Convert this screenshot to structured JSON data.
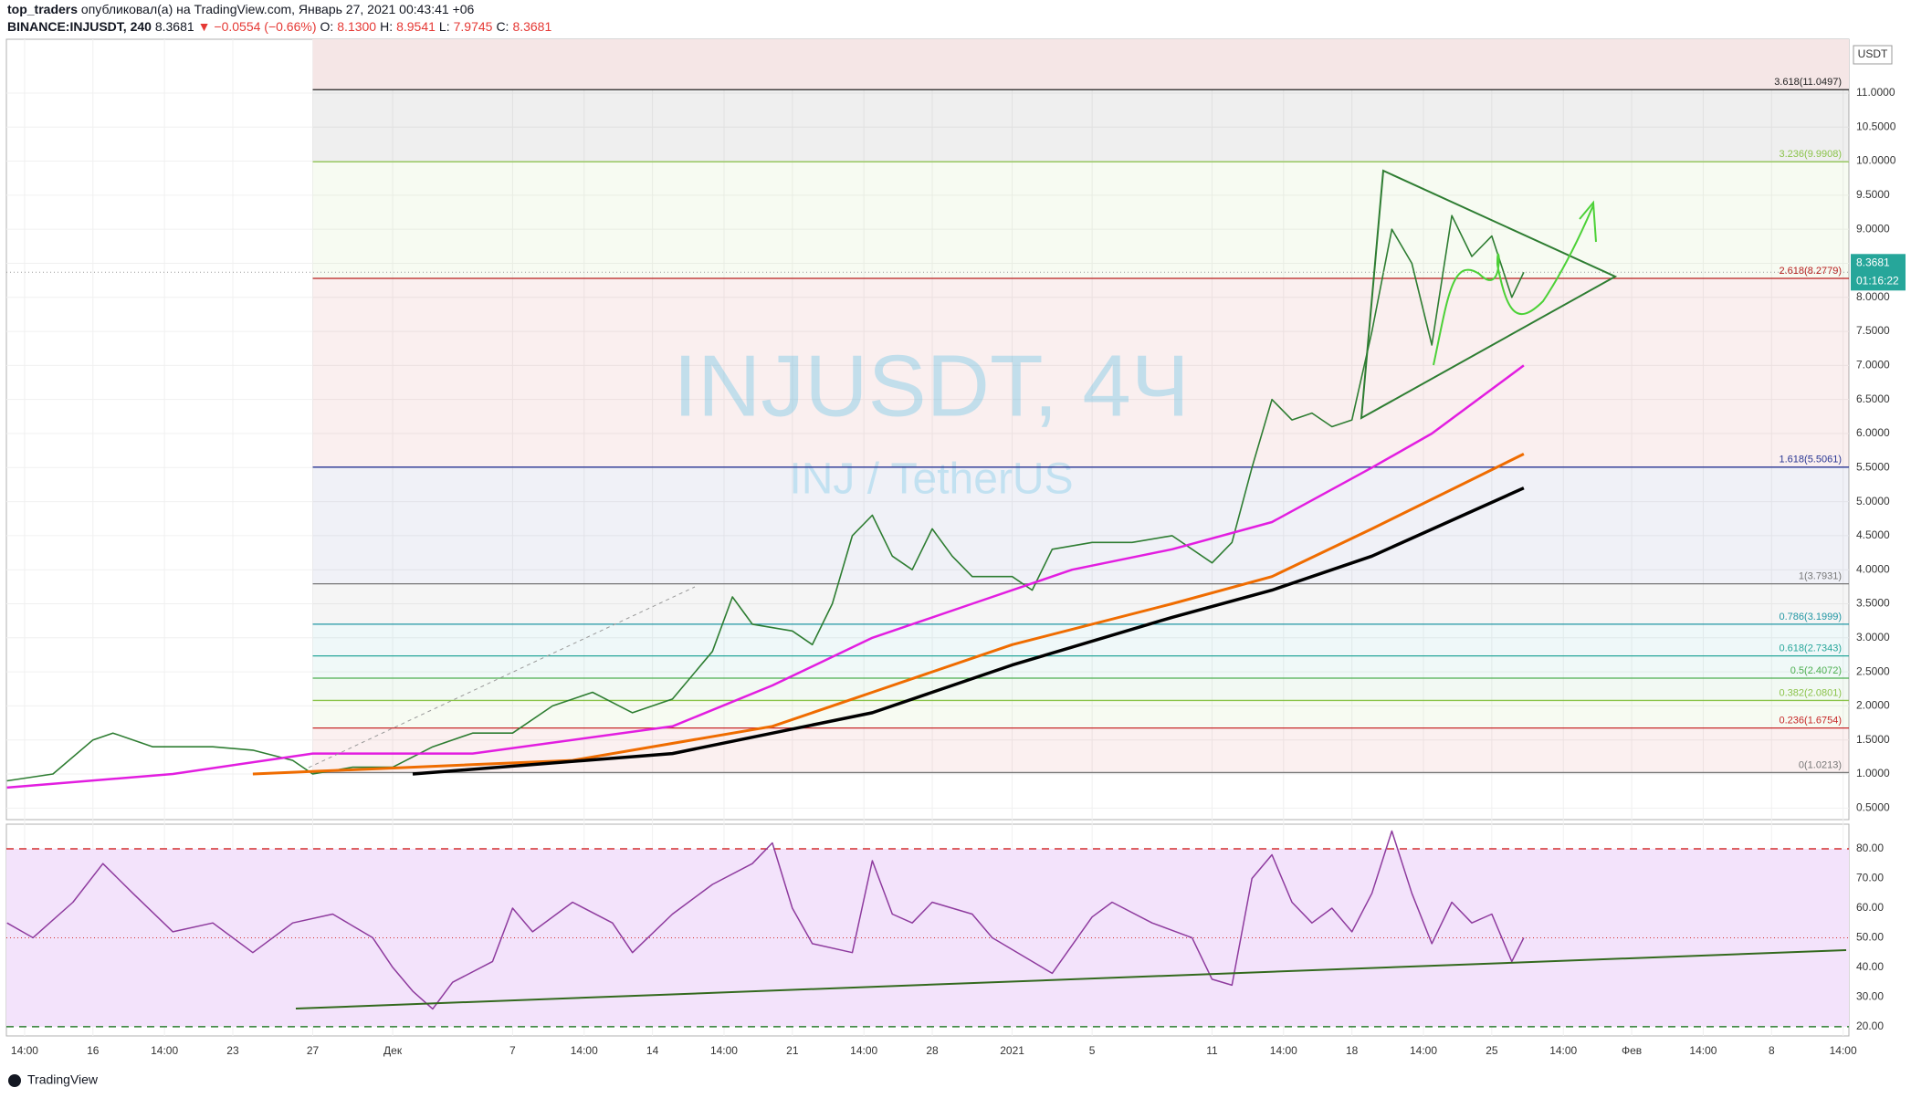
{
  "header": {
    "author": "top_traders",
    "published": "опубликовал(а) на TradingView.com, Январь 27, 2021 00:43:41 +06",
    "symbol": "BINANCE:INJUSDT, 240",
    "last": "8.3681",
    "change": "▼ −0.0554 (−0.66%)",
    "o_label": "O:",
    "o": "8.1300",
    "h_label": "H:",
    "h": "8.9541",
    "l_label": "L:",
    "l": "7.9745",
    "c_label": "C:",
    "c": "8.3681"
  },
  "watermark": {
    "title": "INJUSDT, 4Ч",
    "subtitle": "INJ / TetherUS"
  },
  "currency": "USDT",
  "price_tag": {
    "value": 8.3681,
    "label": "8.3681",
    "timer": "01:16:22"
  },
  "footer": "TradingView",
  "chart": {
    "xlim": [
      11.67,
      103.87
    ],
    "xticks": [
      {
        "value": 12.58,
        "label": "14:00"
      },
      {
        "value": 16,
        "label": "16"
      },
      {
        "value": 19.58,
        "label": "14:00"
      },
      {
        "value": 23,
        "label": "23"
      },
      {
        "value": 27,
        "label": "27"
      },
      {
        "value": 31,
        "label": "Дек"
      },
      {
        "value": 37,
        "label": "7"
      },
      {
        "value": 40.58,
        "label": "14:00"
      },
      {
        "value": 44,
        "label": "14"
      },
      {
        "value": 47.58,
        "label": "14:00"
      },
      {
        "value": 51,
        "label": "21"
      },
      {
        "value": 54.58,
        "label": "14:00"
      },
      {
        "value": 58,
        "label": "28"
      },
      {
        "value": 62,
        "label": "2021"
      },
      {
        "value": 66,
        "label": "5"
      },
      {
        "value": 72,
        "label": "11"
      },
      {
        "value": 75.58,
        "label": "14:00"
      },
      {
        "value": 79,
        "label": "18"
      },
      {
        "value": 82.58,
        "label": "14:00"
      },
      {
        "value": 86,
        "label": "25"
      },
      {
        "value": 89.58,
        "label": "14:00"
      },
      {
        "value": 93,
        "label": "Фев"
      },
      {
        "value": 96.58,
        "label": "14:00"
      },
      {
        "value": 100,
        "label": "8"
      },
      {
        "value": 103.58,
        "label": "14:00"
      }
    ],
    "ylim": [
      0.33,
      11.79
    ],
    "yticks": [
      {
        "value": 0.5,
        "label": "0.5000"
      },
      {
        "value": 1,
        "label": "1.0000"
      },
      {
        "value": 1.5,
        "label": "1.5000"
      },
      {
        "value": 2,
        "label": "2.0000"
      },
      {
        "value": 2.5,
        "label": "2.5000"
      },
      {
        "value": 3,
        "label": "3.0000"
      },
      {
        "value": 3.5,
        "label": "3.5000"
      },
      {
        "value": 4,
        "label": "4.0000"
      },
      {
        "value": 4.5,
        "label": "4.5000"
      },
      {
        "value": 5,
        "label": "5.0000"
      },
      {
        "value": 5.5,
        "label": "5.5000"
      },
      {
        "value": 6,
        "label": "6.0000"
      },
      {
        "value": 6.5,
        "label": "6.5000"
      },
      {
        "value": 7,
        "label": "7.0000"
      },
      {
        "value": 7.5,
        "label": "7.5000"
      },
      {
        "value": 8,
        "label": "8.0000"
      },
      {
        "value": 8.5,
        "label": "8.5000"
      },
      {
        "value": 9,
        "label": "9.0000"
      },
      {
        "value": 9.5,
        "label": "9.5000"
      },
      {
        "value": 10,
        "label": "10.0000"
      },
      {
        "value": 10.5,
        "label": "10.5000"
      },
      {
        "value": 11,
        "label": "11.0000"
      }
    ],
    "fib_start": 27,
    "fib": [
      {
        "value": 11.0497,
        "label": "3.618(11.0497)",
        "color": "#222222"
      },
      {
        "value": 9.9908,
        "label": "3.236(9.9908)",
        "color": "#8bc34a"
      },
      {
        "value": 8.2779,
        "label": "2.618(8.2779)",
        "color": "#b71c1c"
      },
      {
        "value": 5.5061,
        "label": "1.618(5.5061)",
        "color": "#283593"
      },
      {
        "value": 3.7931,
        "label": "1(3.7931)",
        "color": "#777777"
      },
      {
        "value": 3.1999,
        "label": "0.786(3.1999)",
        "color": "#2196a3"
      },
      {
        "value": 2.7343,
        "label": "0.618(2.7343)",
        "color": "#26a69a"
      },
      {
        "value": 2.4072,
        "label": "0.5(2.4072)",
        "color": "#4caf50"
      },
      {
        "value": 2.0801,
        "label": "0.382(2.0801)",
        "color": "#8bc34a"
      },
      {
        "value": 1.6754,
        "label": "0.236(1.6754)",
        "color": "#c62828"
      },
      {
        "value": 1.0213,
        "label": "0(1.0213)",
        "color": "#777777"
      }
    ],
    "series": [
      {
        "color": "#2e7d32",
        "width": 1.6,
        "x": [
          11.7,
          14,
          16,
          17,
          19,
          22,
          24,
          26,
          27,
          29,
          31,
          33,
          35,
          37,
          39,
          41,
          43,
          45,
          47,
          48,
          49,
          51,
          52,
          53,
          54,
          55,
          56,
          57,
          58,
          59,
          60,
          62,
          63,
          64,
          66,
          68,
          70,
          72,
          73,
          74,
          75,
          76,
          77,
          78,
          79,
          80,
          81,
          82,
          83,
          84,
          85,
          86,
          87,
          87.6
        ],
        "values": [
          0.9,
          1.0,
          1.5,
          1.6,
          1.4,
          1.4,
          1.35,
          1.2,
          1.0,
          1.1,
          1.1,
          1.4,
          1.6,
          1.6,
          2.0,
          2.2,
          1.9,
          2.1,
          2.8,
          3.6,
          3.2,
          3.1,
          2.9,
          3.5,
          4.5,
          4.8,
          4.2,
          4.0,
          4.6,
          4.2,
          3.9,
          3.9,
          3.7,
          4.3,
          4.4,
          4.4,
          4.5,
          4.1,
          4.4,
          5.5,
          6.5,
          6.2,
          6.3,
          6.1,
          6.2,
          7.5,
          9.0,
          8.5,
          7.3,
          9.2,
          8.6,
          8.9,
          8.0,
          8.3681
        ]
      },
      {
        "color": "#e21ee0",
        "width": 2.5,
        "x": [
          11.7,
          20,
          27,
          35,
          45,
          50,
          55,
          60,
          65,
          70,
          75,
          80,
          83,
          87.6
        ],
        "values": [
          0.8,
          1.0,
          1.3,
          1.3,
          1.7,
          2.3,
          3.0,
          3.5,
          4.0,
          4.3,
          4.7,
          5.5,
          6.0,
          7.0
        ]
      },
      {
        "color": "#ef6c00",
        "width": 3,
        "x": [
          24,
          40,
          50,
          55,
          62,
          70,
          75,
          80,
          87.6
        ],
        "values": [
          1.0,
          1.2,
          1.7,
          2.2,
          2.9,
          3.5,
          3.9,
          4.6,
          5.7
        ]
      },
      {
        "color": "#000000",
        "width": 3.5,
        "x": [
          32,
          45,
          55,
          62,
          70,
          75,
          80,
          87.6
        ],
        "values": [
          1.0,
          1.3,
          1.9,
          2.6,
          3.3,
          3.7,
          4.2,
          5.2
        ]
      }
    ]
  },
  "rsi": {
    "ylim": [
      16.9,
      88.3
    ],
    "band": [
      20,
      80
    ],
    "mid": 50,
    "yticks": [
      {
        "value": 20,
        "label": "20.00"
      },
      {
        "value": 30,
        "label": "30.00"
      },
      {
        "value": 40,
        "label": "40.00"
      },
      {
        "value": 50,
        "label": "50.00"
      },
      {
        "value": 60,
        "label": "60.00"
      },
      {
        "value": 70,
        "label": "70.00"
      },
      {
        "value": 80,
        "label": "80.00"
      }
    ],
    "color": "#8e3b9e",
    "x": [
      11.7,
      13,
      15,
      16.5,
      18,
      20,
      22,
      24,
      26,
      28,
      30,
      31,
      32,
      33,
      34,
      36,
      37,
      38,
      40,
      42,
      43,
      45,
      47,
      49,
      50,
      51,
      52,
      54,
      55,
      56,
      57,
      58,
      60,
      61,
      62,
      64,
      66,
      67,
      69,
      71,
      72,
      73,
      74,
      75,
      76,
      77,
      78,
      79,
      80,
      81,
      82,
      83,
      84,
      85,
      86,
      87,
      87.6
    ],
    "values": [
      55,
      50,
      62,
      75,
      65,
      52,
      55,
      45,
      55,
      58,
      50,
      40,
      32,
      26,
      35,
      42,
      60,
      52,
      62,
      55,
      45,
      58,
      68,
      75,
      82,
      60,
      48,
      45,
      76,
      58,
      55,
      62,
      58,
      50,
      46,
      38,
      57,
      62,
      55,
      50,
      36,
      34,
      70,
      78,
      62,
      55,
      60,
      52,
      65,
      86,
      65,
      48,
      62,
      55,
      58,
      42,
      50
    ]
  }
}
